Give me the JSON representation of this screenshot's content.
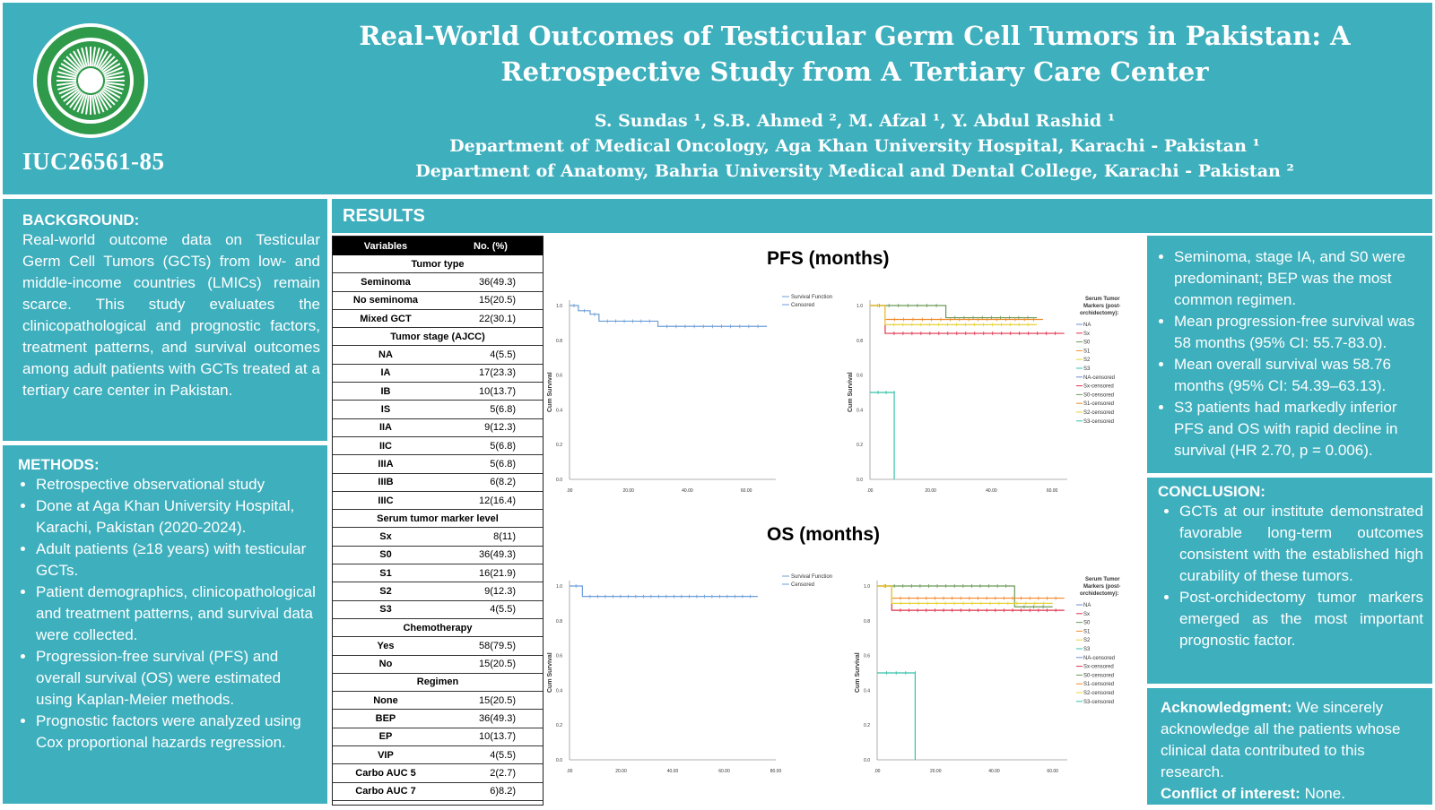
{
  "header": {
    "code": "IUC26561-85",
    "title_line1": "Real-World Outcomes of  Testicular Germ Cell Tumors in Pakistan: A",
    "title_line2": "Retrospective Study from A Tertiary Care Center",
    "authors": "S. Sundas ¹, S.B. Ahmed ², M. Afzal ¹, Y. Abdul Rashid ¹",
    "affil1": "Department of  Medical Oncology, Aga Khan University Hospital, Karachi - Pakistan ¹",
    "affil2": "Department of  Anatomy, Bahria University Medical and Dental College, Karachi - Pakistan ²"
  },
  "background": {
    "heading": "BACKGROUND:",
    "text": "Real-world outcome data on Testicular Germ Cell Tumors (GCTs) from low- and middle-income countries (LMICs) remain scarce. This study evaluates the clinicopathological and prognostic factors, treatment patterns, and survival outcomes among adult patients with GCTs treated at a tertiary care center in Pakistan."
  },
  "methods": {
    "heading": "METHODS:",
    "items": [
      "Retrospective observational study",
      "Done at Aga Khan University Hospital, Karachi, Pakistan (2020-2024).",
      "Adult patients (≥18 years) with testicular GCTs.",
      "Patient demographics, clinicopathological and treatment patterns, and survival data were collected.",
      "Progression-free survival (PFS) and overall survival (OS) were estimated using Kaplan-Meier methods.",
      "Prognostic factors were analyzed using Cox proportional hazards regression."
    ]
  },
  "results": {
    "heading": "RESULTS",
    "table": {
      "col1": "Variables",
      "col2": "No. (%)",
      "rows": [
        {
          "s": "Tumor type"
        },
        {
          "l": "Seminoma",
          "v": "36(49.3)"
        },
        {
          "l": "No seminoma",
          "v": "15(20.5)"
        },
        {
          "l": "Mixed GCT",
          "v": "22(30.1)"
        },
        {
          "s": "Tumor stage (AJCC)"
        },
        {
          "l": "NA",
          "v": "4(5.5)"
        },
        {
          "l": "IA",
          "v": "17(23.3)"
        },
        {
          "l": "IB",
          "v": "10(13.7)"
        },
        {
          "l": "IS",
          "v": "5(6.8)"
        },
        {
          "l": "IIA",
          "v": "9(12.3)"
        },
        {
          "l": "IIC",
          "v": "5(6.8)"
        },
        {
          "l": "IIIA",
          "v": "5(6.8)"
        },
        {
          "l": "IIIB",
          "v": "6(8.2)"
        },
        {
          "l": "IIIC",
          "v": "12(16.4)"
        },
        {
          "s": "Serum tumor marker level"
        },
        {
          "l": "Sx",
          "v": "8(11)"
        },
        {
          "l": "S0",
          "v": "36(49.3)"
        },
        {
          "l": "S1",
          "v": "16(21.9)"
        },
        {
          "l": "S2",
          "v": "9(12.3)"
        },
        {
          "l": "S3",
          "v": "4(5.5)"
        },
        {
          "s": "Chemotherapy"
        },
        {
          "l": "Yes",
          "v": "58(79.5)"
        },
        {
          "l": "No",
          "v": "15(20.5)"
        },
        {
          "s": "Regimen"
        },
        {
          "l": "None",
          "v": "15(20.5)"
        },
        {
          "l": "BEP",
          "v": "36(49.3)"
        },
        {
          "l": "EP",
          "v": "10(13.7)"
        },
        {
          "l": "VIP",
          "v": "4(5.5)"
        },
        {
          "l": "Carbo AUC 5",
          "v": "2(2.7)"
        },
        {
          "l": "Carbo AUC 7",
          "v": "6)8.2)"
        }
      ]
    },
    "pfs_title": "PFS (months)",
    "os_title": "OS (months)",
    "ylabel": "Cum Survival",
    "legend_simple": [
      "Survival Function",
      "Censored"
    ],
    "legend_markers_title": "Serum Tumor Markers (post-orchidectomy):",
    "legend_markers": [
      "NA",
      "Sx",
      "S0",
      "S1",
      "S2",
      "S3",
      "NA-censored",
      "Sx-censored",
      "S0-censored",
      "S1-censored",
      "S2-censored",
      "S3-censored"
    ],
    "marker_colors": [
      "#6b8ed6",
      "#e0304a",
      "#6a9a58",
      "#f08a2c",
      "#e6d33a",
      "#35c2a8"
    ],
    "yticks": [
      "0.0",
      "0.2",
      "0.4",
      "0.6",
      "0.8",
      "1.0"
    ],
    "xticks_pfs": [
      ".00",
      "20.00",
      "40.00",
      "60.00"
    ],
    "xticks_os": [
      ".00",
      "20.00",
      "40.00",
      "60.00",
      "80.00"
    ]
  },
  "chart_data": [
    {
      "type": "line",
      "title": "PFS (months)",
      "ylabel": "Cum Survival",
      "ylim": [
        0,
        1
      ],
      "xlim": [
        0,
        70
      ],
      "series": [
        {
          "name": "Survival Function",
          "x": [
            0,
            3,
            7,
            10,
            30,
            67
          ],
          "y": [
            1.0,
            0.97,
            0.95,
            0.91,
            0.88,
            0.88
          ]
        }
      ]
    },
    {
      "type": "line",
      "title": "PFS (months)",
      "ylabel": "Cum Survival",
      "ylim": [
        0,
        1
      ],
      "xlim": [
        0,
        65
      ],
      "series": [
        {
          "name": "Sx",
          "x": [
            0,
            5,
            64
          ],
          "y": [
            1.0,
            0.84,
            0.84
          ]
        },
        {
          "name": "S0",
          "x": [
            0,
            25,
            55
          ],
          "y": [
            1.0,
            0.93,
            0.93
          ]
        },
        {
          "name": "S1",
          "x": [
            0,
            5,
            57
          ],
          "y": [
            1.0,
            0.92,
            0.92
          ]
        },
        {
          "name": "S2",
          "x": [
            0,
            5,
            55
          ],
          "y": [
            1.0,
            0.89,
            0.89
          ]
        },
        {
          "name": "S3",
          "x": [
            0,
            8,
            8
          ],
          "y": [
            0.5,
            0.5,
            0.0
          ]
        }
      ]
    },
    {
      "type": "line",
      "title": "OS (months)",
      "ylabel": "Cum Survival",
      "ylim": [
        0,
        1
      ],
      "xlim": [
        0,
        80
      ],
      "series": [
        {
          "name": "Survival Function",
          "x": [
            0,
            5,
            73
          ],
          "y": [
            1.0,
            0.94,
            0.94
          ]
        }
      ]
    },
    {
      "type": "line",
      "title": "OS (months)",
      "ylabel": "Cum Survival",
      "ylim": [
        0,
        1
      ],
      "xlim": [
        0,
        65
      ],
      "series": [
        {
          "name": "Sx",
          "x": [
            0,
            5,
            64
          ],
          "y": [
            1.0,
            0.86,
            0.86
          ]
        },
        {
          "name": "S0",
          "x": [
            0,
            47,
            60
          ],
          "y": [
            1.0,
            0.88,
            0.88
          ]
        },
        {
          "name": "S1",
          "x": [
            0,
            5,
            64
          ],
          "y": [
            1.0,
            0.93,
            0.93
          ]
        },
        {
          "name": "S2",
          "x": [
            0,
            5,
            60
          ],
          "y": [
            1.0,
            0.9,
            0.9
          ]
        },
        {
          "name": "S3",
          "x": [
            0,
            13,
            13
          ],
          "y": [
            0.5,
            0.5,
            0.0
          ]
        }
      ]
    }
  ],
  "findings": [
    "Seminoma, stage IA, and S0 were predominant; BEP was the most common regimen.",
    "Mean progression-free survival was 58 months (95% CI: 55.7-83.0).",
    " Mean overall survival was 58.76 months (95% CI: 54.39–63.13).",
    "S3 patients had markedly inferior PFS and OS with rapid decline in survival (HR 2.70, p = 0.006)."
  ],
  "conclusion": {
    "heading": "CONCLUSION:",
    "items": [
      "GCTs at our institute demonstrated favorable long-term outcomes consistent with the established high curability of these tumors.",
      "Post-orchidectomy tumor markers emerged as the most important prognostic factor."
    ]
  },
  "ack": {
    "ack_label": "Acknowledgment:",
    "ack_text": " We sincerely acknowledge all the patients whose clinical data contributed to this research.",
    "coi_label": "Conflict of interest:",
    "coi_text": " None."
  },
  "colors": {
    "teal": "#3eafbd",
    "logo_green": "#2e9a4a"
  }
}
